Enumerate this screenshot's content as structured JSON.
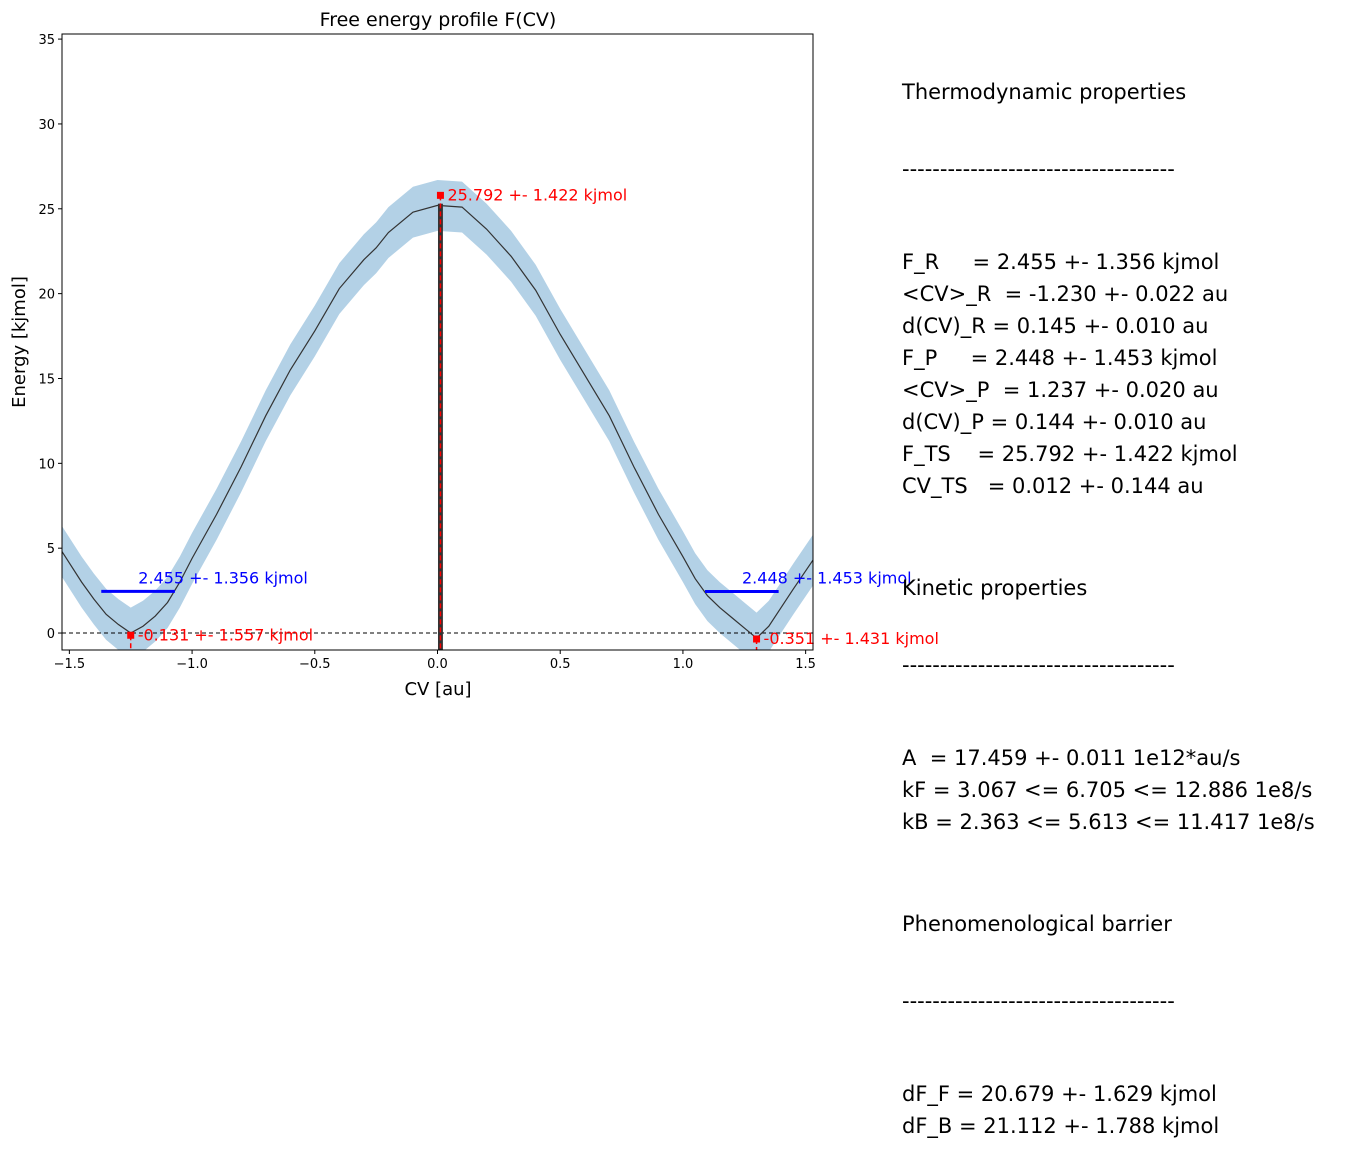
{
  "chart_data": {
    "type": "line",
    "title": "Free energy profile F(CV)",
    "xlabel": "CV [au]",
    "ylabel": "Energy [kjmol]",
    "xlim": [
      -1.53,
      1.53
    ],
    "ylim": [
      -1.0,
      35.3
    ],
    "xticks": [
      -1.5,
      -1.0,
      -0.5,
      0.0,
      0.5,
      1.0,
      1.5
    ],
    "xtick_labels": [
      "−1.5",
      "−1.0",
      "−0.5",
      "0.0",
      "0.5",
      "1.0",
      "1.5"
    ],
    "yticks": [
      0,
      5,
      10,
      15,
      20,
      25,
      30,
      35
    ],
    "ytick_labels": [
      "0",
      "5",
      "10",
      "15",
      "20",
      "25",
      "30",
      "35"
    ],
    "grid": false,
    "profile": {
      "x": [
        -1.53,
        -1.45,
        -1.4,
        -1.35,
        -1.3,
        -1.25,
        -1.2,
        -1.15,
        -1.1,
        -1.05,
        -1.0,
        -0.9,
        -0.8,
        -0.75,
        -0.7,
        -0.6,
        -0.5,
        -0.4,
        -0.3,
        -0.25,
        -0.2,
        -0.1,
        0.0,
        0.1,
        0.2,
        0.25,
        0.3,
        0.4,
        0.5,
        0.6,
        0.7,
        0.75,
        0.8,
        0.9,
        1.0,
        1.05,
        1.1,
        1.15,
        1.2,
        1.25,
        1.3,
        1.35,
        1.4,
        1.45,
        1.53
      ],
      "y": [
        4.8,
        3.0,
        2.0,
        1.1,
        0.5,
        0.0,
        0.4,
        1.0,
        1.8,
        3.0,
        4.4,
        7.0,
        9.8,
        11.3,
        12.8,
        15.5,
        17.8,
        20.3,
        22.0,
        22.7,
        23.6,
        24.8,
        25.2,
        25.1,
        23.8,
        23.0,
        22.2,
        20.2,
        17.6,
        15.2,
        12.8,
        11.3,
        9.8,
        7.0,
        4.5,
        3.2,
        2.2,
        1.5,
        0.9,
        0.3,
        -0.3,
        0.4,
        1.5,
        2.6,
        4.3
      ],
      "uncertainty": 1.5,
      "line_color": "#333333",
      "band_color": "#b3d1e6"
    },
    "reactant_level": {
      "x": [
        -1.37,
        -1.07
      ],
      "y": 2.455,
      "label": "2.455 +- 1.356 kjmol",
      "color": "#0000ff"
    },
    "product_level": {
      "x": [
        1.09,
        1.39
      ],
      "y": 2.448,
      "label": "2.448 +- 1.453 kjmol",
      "color": "#0000ff"
    },
    "markers": [
      {
        "x": -1.25,
        "y": -0.131,
        "label": "-0.131 +- 1.557 kjmol"
      },
      {
        "x": 1.3,
        "y": -0.351,
        "label": "-0.351 +- 1.431 kjmol"
      },
      {
        "x": 0.012,
        "y": 25.792,
        "label": "25.792 +- 1.422 kjmol"
      }
    ],
    "marker_color": "#ff0000",
    "ts_bar": {
      "x": 0.012,
      "half_width": 0.01,
      "top": 25.3
    }
  },
  "properties": {
    "thermo_title": "Thermodynamic properties",
    "rule": "------------------------------------",
    "thermo": [
      "F_R     = 2.455 +- 1.356 kjmol",
      "<CV>_R  = -1.230 +- 0.022 au",
      "d(CV)_R = 0.145 +- 0.010 au",
      "F_P     = 2.448 +- 1.453 kjmol",
      "<CV>_P  = 1.237 +- 0.020 au",
      "d(CV)_P = 0.144 +- 0.010 au",
      "F_TS    = 25.792 +- 1.422 kjmol",
      "CV_TS   = 0.012 +- 0.144 au"
    ],
    "kinetic_title": "Kinetic properties",
    "kinetic": [
      "A  = 17.459 +- 0.011 1e12*au/s",
      "kF = 3.067 <= 6.705 <= 12.886 1e8/s",
      "kB = 2.363 <= 5.613 <= 11.417 1e8/s"
    ],
    "pheno_title": "Phenomenological barrier",
    "pheno": [
      "dF_F = 20.679 +- 1.629 kjmol",
      "dF_B = 21.112 +- 1.788 kjmol"
    ]
  }
}
